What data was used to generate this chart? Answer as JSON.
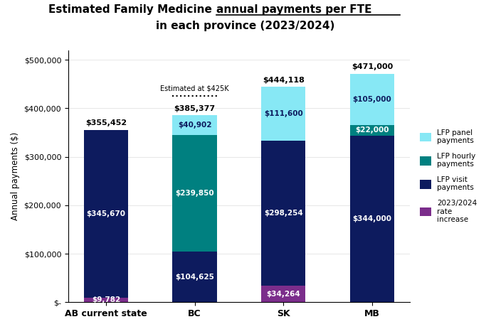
{
  "categories": [
    "AB current state",
    "BC",
    "SK",
    "MB"
  ],
  "visit_payments": [
    345670,
    104625,
    298254,
    344000
  ],
  "hourly_payments": [
    0,
    239850,
    0,
    22000
  ],
  "panel_payments": [
    0,
    40902,
    111600,
    105000
  ],
  "rate_increase": [
    9782,
    0,
    34264,
    0
  ],
  "totals": [
    355452,
    385377,
    444118,
    471000
  ],
  "visit_labels": [
    "$345,670",
    "$104,625",
    "$298,254",
    "$344,000"
  ],
  "hourly_labels": [
    "",
    "$239,850",
    "",
    "$22,000"
  ],
  "panel_labels": [
    "",
    "$40,902",
    "$111,600",
    "$105,000"
  ],
  "rate_labels": [
    "$9,782",
    "",
    "$34,264",
    ""
  ],
  "total_labels": [
    "$355,452",
    "$385,377",
    "$444,118",
    "$471,000"
  ],
  "color_visit": "#0d1b5e",
  "color_hourly": "#008080",
  "color_panel": "#87e8f5",
  "color_rate": "#7b2d8b",
  "bc_estimated_label": "Estimated at $425K",
  "bc_estimated_value": 425000,
  "title_part1": "Estimated Family Medicine ",
  "title_underline": "annual payments per FTE",
  "title_line2": "in each province (2023/2024)",
  "ylabel": "Annual payments ($)",
  "legend_labels": [
    "LFP panel\npayments",
    "LFP hourly\npayments",
    "LFP visit\npayments",
    "2023/2024\nrate\nincrease"
  ],
  "ylim": [
    0,
    520000
  ],
  "yticks": [
    0,
    100000,
    200000,
    300000,
    400000,
    500000
  ],
  "ytick_labels": [
    "$-",
    "$100,000",
    "$200,000",
    "$300,000",
    "$400,000",
    "$500,000"
  ],
  "background_color": "#ffffff",
  "bar_width": 0.5
}
